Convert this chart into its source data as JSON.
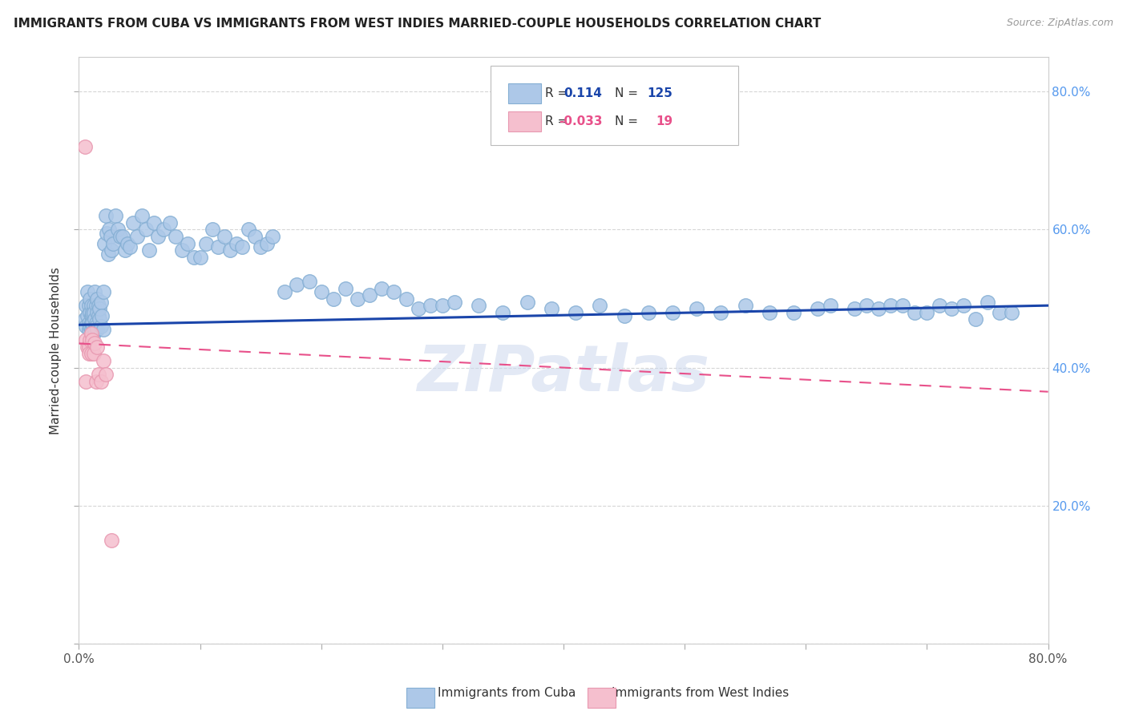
{
  "title": "IMMIGRANTS FROM CUBA VS IMMIGRANTS FROM WEST INDIES MARRIED-COUPLE HOUSEHOLDS CORRELATION CHART",
  "source": "Source: ZipAtlas.com",
  "ylabel": "Married-couple Households",
  "xmin": 0.0,
  "xmax": 0.8,
  "ymin": 0.0,
  "ymax": 0.85,
  "cuba_color": "#adc8e8",
  "cuba_edge_color": "#85afd4",
  "westindies_color": "#f5bfce",
  "westindies_edge_color": "#e898b0",
  "cuba_line_color": "#1a45aa",
  "westindies_line_color": "#e8508a",
  "R_cuba": 0.114,
  "N_cuba": 125,
  "R_westindies": -0.033,
  "N_westindies": 19,
  "background_color": "#ffffff",
  "grid_color": "#cccccc",
  "right_axis_color": "#5599ee",
  "cuba_line_start_y": 0.462,
  "cuba_line_end_y": 0.49,
  "wi_line_start_y": 0.435,
  "wi_line_end_y": 0.365,
  "watermark_text": "ZIPatlas",
  "watermark_color": "#ccd8ee",
  "cuba_x": [
    0.005,
    0.006,
    0.006,
    0.007,
    0.007,
    0.008,
    0.008,
    0.008,
    0.009,
    0.009,
    0.009,
    0.01,
    0.01,
    0.01,
    0.01,
    0.011,
    0.011,
    0.011,
    0.012,
    0.012,
    0.012,
    0.013,
    0.013,
    0.013,
    0.014,
    0.014,
    0.014,
    0.015,
    0.015,
    0.015,
    0.016,
    0.016,
    0.017,
    0.017,
    0.018,
    0.018,
    0.019,
    0.02,
    0.02,
    0.021,
    0.022,
    0.023,
    0.024,
    0.025,
    0.026,
    0.027,
    0.028,
    0.03,
    0.032,
    0.034,
    0.036,
    0.038,
    0.04,
    0.042,
    0.045,
    0.048,
    0.052,
    0.055,
    0.058,
    0.062,
    0.065,
    0.07,
    0.075,
    0.08,
    0.085,
    0.09,
    0.095,
    0.1,
    0.105,
    0.11,
    0.115,
    0.12,
    0.125,
    0.13,
    0.135,
    0.14,
    0.145,
    0.15,
    0.155,
    0.16,
    0.17,
    0.18,
    0.19,
    0.2,
    0.21,
    0.22,
    0.23,
    0.24,
    0.25,
    0.26,
    0.27,
    0.28,
    0.29,
    0.3,
    0.31,
    0.33,
    0.35,
    0.37,
    0.39,
    0.41,
    0.43,
    0.45,
    0.47,
    0.49,
    0.51,
    0.53,
    0.55,
    0.57,
    0.59,
    0.61,
    0.62,
    0.64,
    0.65,
    0.66,
    0.67,
    0.68,
    0.69,
    0.7,
    0.71,
    0.72,
    0.73,
    0.74,
    0.75,
    0.76,
    0.77
  ],
  "cuba_y": [
    0.47,
    0.49,
    0.46,
    0.51,
    0.475,
    0.465,
    0.49,
    0.455,
    0.5,
    0.48,
    0.46,
    0.475,
    0.49,
    0.455,
    0.465,
    0.475,
    0.48,
    0.465,
    0.49,
    0.45,
    0.48,
    0.47,
    0.51,
    0.455,
    0.465,
    0.49,
    0.46,
    0.48,
    0.5,
    0.455,
    0.475,
    0.49,
    0.47,
    0.485,
    0.46,
    0.495,
    0.475,
    0.51,
    0.455,
    0.58,
    0.62,
    0.595,
    0.565,
    0.6,
    0.59,
    0.57,
    0.58,
    0.62,
    0.6,
    0.59,
    0.59,
    0.57,
    0.58,
    0.575,
    0.61,
    0.59,
    0.62,
    0.6,
    0.57,
    0.61,
    0.59,
    0.6,
    0.61,
    0.59,
    0.57,
    0.58,
    0.56,
    0.56,
    0.58,
    0.6,
    0.575,
    0.59,
    0.57,
    0.58,
    0.575,
    0.6,
    0.59,
    0.575,
    0.58,
    0.59,
    0.51,
    0.52,
    0.525,
    0.51,
    0.5,
    0.515,
    0.5,
    0.505,
    0.515,
    0.51,
    0.5,
    0.485,
    0.49,
    0.49,
    0.495,
    0.49,
    0.48,
    0.495,
    0.485,
    0.48,
    0.49,
    0.475,
    0.48,
    0.48,
    0.485,
    0.48,
    0.49,
    0.48,
    0.48,
    0.485,
    0.49,
    0.485,
    0.49,
    0.485,
    0.49,
    0.49,
    0.48,
    0.48,
    0.49,
    0.485,
    0.49,
    0.47,
    0.495,
    0.48,
    0.48
  ],
  "wi_x": [
    0.005,
    0.006,
    0.006,
    0.007,
    0.008,
    0.008,
    0.009,
    0.01,
    0.01,
    0.011,
    0.012,
    0.013,
    0.014,
    0.015,
    0.016,
    0.018,
    0.02,
    0.022,
    0.027
  ],
  "wi_y": [
    0.72,
    0.44,
    0.38,
    0.43,
    0.43,
    0.42,
    0.44,
    0.45,
    0.42,
    0.44,
    0.42,
    0.435,
    0.38,
    0.43,
    0.39,
    0.38,
    0.41,
    0.39,
    0.15
  ]
}
